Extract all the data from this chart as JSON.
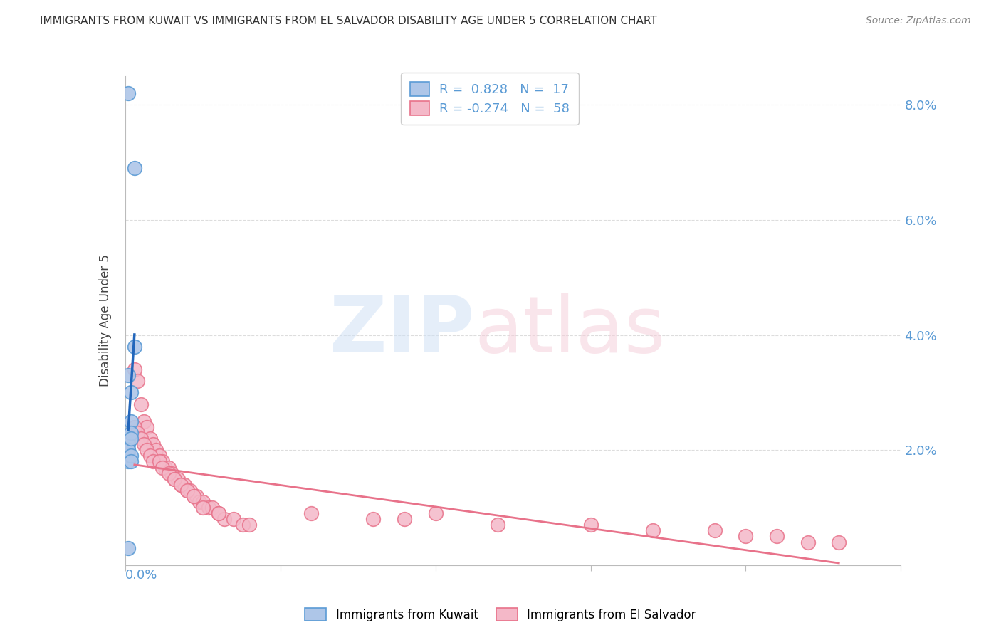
{
  "title": "IMMIGRANTS FROM KUWAIT VS IMMIGRANTS FROM EL SALVADOR DISABILITY AGE UNDER 5 CORRELATION CHART",
  "source": "Source: ZipAtlas.com",
  "ylabel": "Disability Age Under 5",
  "xlim": [
    0.0,
    0.25
  ],
  "ylim": [
    0.0,
    0.085
  ],
  "yticks": [
    0.0,
    0.02,
    0.04,
    0.06,
    0.08
  ],
  "ytick_labels": [
    "",
    "2.0%",
    "4.0%",
    "6.0%",
    "8.0%"
  ],
  "xtick_positions": [
    0.0,
    0.05,
    0.1,
    0.15,
    0.2,
    0.25
  ],
  "kuwait_color": "#aec6e8",
  "kuwait_edge": "#5b9bd5",
  "salvador_color": "#f4b8c8",
  "salvador_edge": "#e8728a",
  "kuwait_line_color": "#2266bb",
  "salvador_line_color": "#e8728a",
  "legend_blue_label": "R =  0.828   N =  17",
  "legend_pink_label": "R = -0.274   N =  58",
  "bottom_legend_kuwait": "Immigrants from Kuwait",
  "bottom_legend_salvador": "Immigrants from El Salvador",
  "kuwait_x": [
    0.001,
    0.001,
    0.001,
    0.001,
    0.001,
    0.001,
    0.001,
    0.002,
    0.002,
    0.002,
    0.002,
    0.002,
    0.002,
    0.003,
    0.003,
    0.001,
    0.001
  ],
  "kuwait_y": [
    0.082,
    0.022,
    0.02,
    0.019,
    0.021,
    0.02,
    0.018,
    0.03,
    0.025,
    0.023,
    0.019,
    0.018,
    0.022,
    0.069,
    0.038,
    0.033,
    0.003
  ],
  "salvador_x": [
    0.003,
    0.004,
    0.005,
    0.006,
    0.007,
    0.008,
    0.009,
    0.01,
    0.011,
    0.012,
    0.013,
    0.014,
    0.015,
    0.016,
    0.017,
    0.018,
    0.019,
    0.02,
    0.021,
    0.022,
    0.023,
    0.024,
    0.025,
    0.027,
    0.028,
    0.03,
    0.032,
    0.035,
    0.038,
    0.04,
    0.003,
    0.004,
    0.005,
    0.006,
    0.007,
    0.008,
    0.009,
    0.011,
    0.012,
    0.014,
    0.016,
    0.018,
    0.02,
    0.022,
    0.025,
    0.03,
    0.06,
    0.09,
    0.12,
    0.15,
    0.17,
    0.19,
    0.2,
    0.21,
    0.22,
    0.23,
    0.08,
    0.1
  ],
  "salvador_y": [
    0.034,
    0.032,
    0.028,
    0.025,
    0.024,
    0.022,
    0.021,
    0.02,
    0.019,
    0.018,
    0.017,
    0.017,
    0.016,
    0.015,
    0.015,
    0.014,
    0.014,
    0.013,
    0.013,
    0.012,
    0.012,
    0.011,
    0.011,
    0.01,
    0.01,
    0.009,
    0.008,
    0.008,
    0.007,
    0.007,
    0.024,
    0.023,
    0.022,
    0.021,
    0.02,
    0.019,
    0.018,
    0.018,
    0.017,
    0.016,
    0.015,
    0.014,
    0.013,
    0.012,
    0.01,
    0.009,
    0.009,
    0.008,
    0.007,
    0.007,
    0.006,
    0.006,
    0.005,
    0.005,
    0.004,
    0.004,
    0.008,
    0.009
  ]
}
